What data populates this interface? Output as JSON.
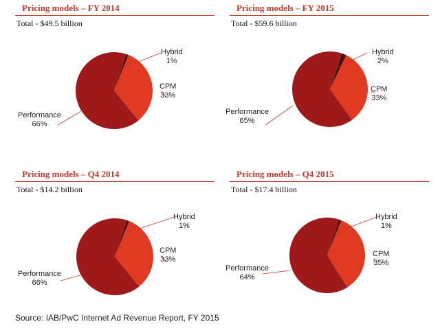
{
  "chart_data": [
    {
      "type": "pie",
      "title": "Pricing models – FY 2014",
      "subtitle": "Total - $49.5 billion",
      "slices": [
        {
          "name": "Hybrid",
          "value": 1,
          "value_label": "1%",
          "color": "#4a1010"
        },
        {
          "name": "CPM",
          "value": 33,
          "value_label": "33%",
          "color": "#e03a22"
        },
        {
          "name": "Performance",
          "value": 66,
          "value_label": "66%",
          "color": "#9e1a1a"
        }
      ]
    },
    {
      "type": "pie",
      "title": "Pricing models – FY 2015",
      "subtitle": "Total - $59.6 billion",
      "slices": [
        {
          "name": "Hybrid",
          "value": 2,
          "value_label": "2%",
          "color": "#4a1010"
        },
        {
          "name": "CPM",
          "value": 33,
          "value_label": "33%",
          "color": "#e03a22"
        },
        {
          "name": "Performance",
          "value": 65,
          "value_label": "65%",
          "color": "#9e1a1a"
        }
      ]
    },
    {
      "type": "pie",
      "title": "Pricing models – Q4 2014",
      "subtitle": "Total - $14.2 billion",
      "slices": [
        {
          "name": "Hybrid",
          "value": 1,
          "value_label": "1%",
          "color": "#4a1010"
        },
        {
          "name": "CPM",
          "value": 33,
          "value_label": "33%",
          "color": "#e03a22"
        },
        {
          "name": "Performance",
          "value": 66,
          "value_label": "66%",
          "color": "#9e1a1a"
        }
      ]
    },
    {
      "type": "pie",
      "title": "Pricing models – Q4 2015",
      "subtitle": "Total - $17.4 billion",
      "slices": [
        {
          "name": "Hybrid",
          "value": 1,
          "value_label": "1%",
          "color": "#4a1010"
        },
        {
          "name": "CPM",
          "value": 35,
          "value_label": "35%",
          "color": "#e03a22"
        },
        {
          "name": "Performance",
          "value": 64,
          "value_label": "64%",
          "color": "#9e1a1a"
        }
      ]
    }
  ],
  "source": "Source: IAB/PwC Internet Ad Revenue Report, FY 2015"
}
